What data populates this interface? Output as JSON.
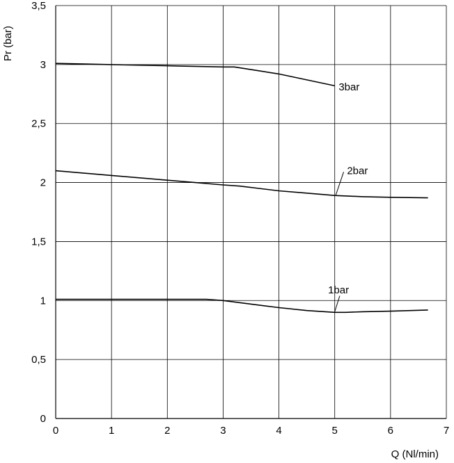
{
  "chart_data": {
    "type": "line",
    "title": "",
    "xlabel": "Q (Nl/min)",
    "ylabel": "Pr (bar)",
    "xlim": [
      0,
      7
    ],
    "ylim": [
      0,
      3.5
    ],
    "x_ticks": [
      0,
      1,
      2,
      3,
      4,
      5,
      6,
      7
    ],
    "y_ticks": [
      0,
      0.5,
      1,
      1.5,
      2,
      2.5,
      3,
      3.5
    ],
    "x_tick_labels": [
      "0",
      "1",
      "2",
      "3",
      "4",
      "5",
      "6",
      "7"
    ],
    "y_tick_labels": [
      "0",
      "0,5",
      "1",
      "1,5",
      "2",
      "2,5",
      "3",
      "3,5"
    ],
    "grid": true,
    "legend": "none",
    "line_color": "#000000",
    "series": [
      {
        "name": "3bar",
        "x": [
          0,
          1,
          2,
          3,
          3.2,
          3.6,
          4,
          4.5,
          5
        ],
        "y": [
          3.01,
          3.0,
          2.99,
          2.98,
          2.98,
          2.95,
          2.92,
          2.87,
          2.82
        ]
      },
      {
        "name": "2bar",
        "x": [
          0,
          1,
          2,
          2.5,
          3,
          3.3,
          4,
          4.5,
          5,
          5.5,
          6,
          6.67
        ],
        "y": [
          2.1,
          2.06,
          2.02,
          2.0,
          1.98,
          1.97,
          1.93,
          1.91,
          1.89,
          1.88,
          1.875,
          1.87
        ],
        "label_leader": true
      },
      {
        "name": "1bar",
        "x": [
          0,
          1,
          2,
          2.7,
          3,
          3.5,
          4,
          4.5,
          5,
          5.2,
          5.5,
          6,
          6.67
        ],
        "y": [
          1.01,
          1.01,
          1.01,
          1.01,
          1.0,
          0.97,
          0.94,
          0.915,
          0.9,
          0.9,
          0.905,
          0.91,
          0.92
        ],
        "label_leader": true
      }
    ]
  }
}
